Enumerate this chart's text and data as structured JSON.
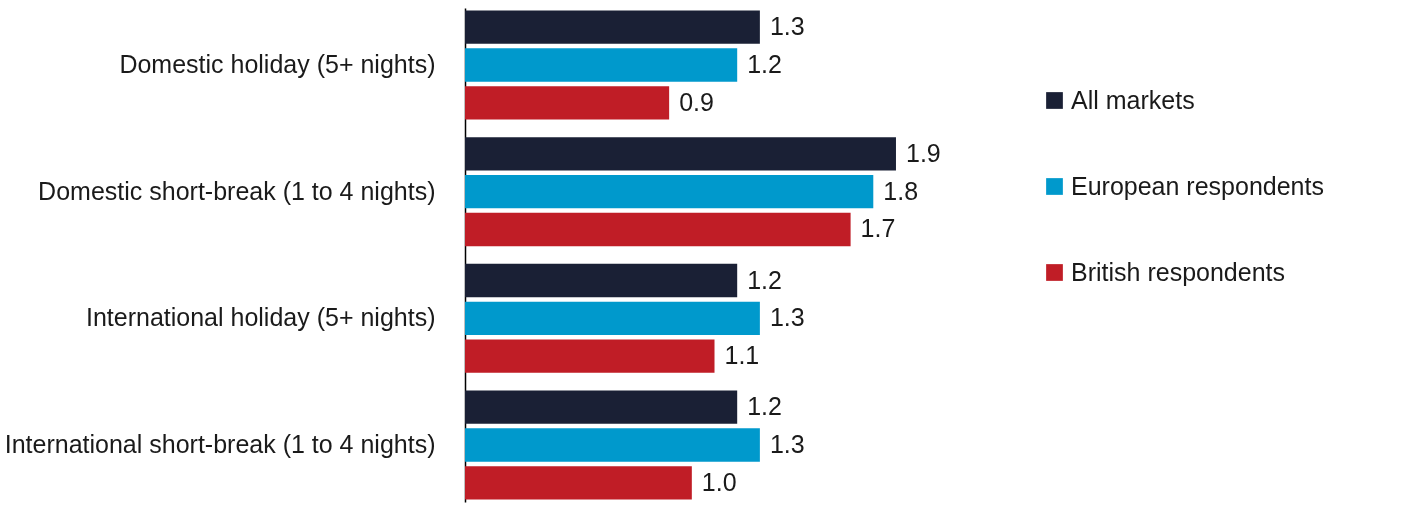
{
  "chart_data": {
    "type": "bar",
    "orientation": "horizontal",
    "legend": "right",
    "categories": [
      "Domestic holiday (5+ nights)",
      "Domestic short-break (1 to 4 nights)",
      "International holiday (5+ nights)",
      "International short-break (1 to 4 nights)"
    ],
    "series": [
      {
        "name": "All markets",
        "color": "#1a2035",
        "values": [
          1.3,
          1.9,
          1.2,
          1.2
        ],
        "value_labels": [
          "1.3",
          "1.9",
          "1.2",
          "1.2"
        ]
      },
      {
        "name": "European respondents",
        "color": "#0099cc",
        "values": [
          1.2,
          1.8,
          1.3,
          1.3
        ],
        "value_labels": [
          "1.2",
          "1.8",
          "1.3",
          "1.3"
        ]
      },
      {
        "name": "British respondents",
        "color": "#c01d26",
        "values": [
          0.9,
          1.7,
          1.1,
          1.0
        ],
        "value_labels": [
          "0.9",
          "1.7",
          "1.1",
          "1.0"
        ]
      }
    ]
  }
}
